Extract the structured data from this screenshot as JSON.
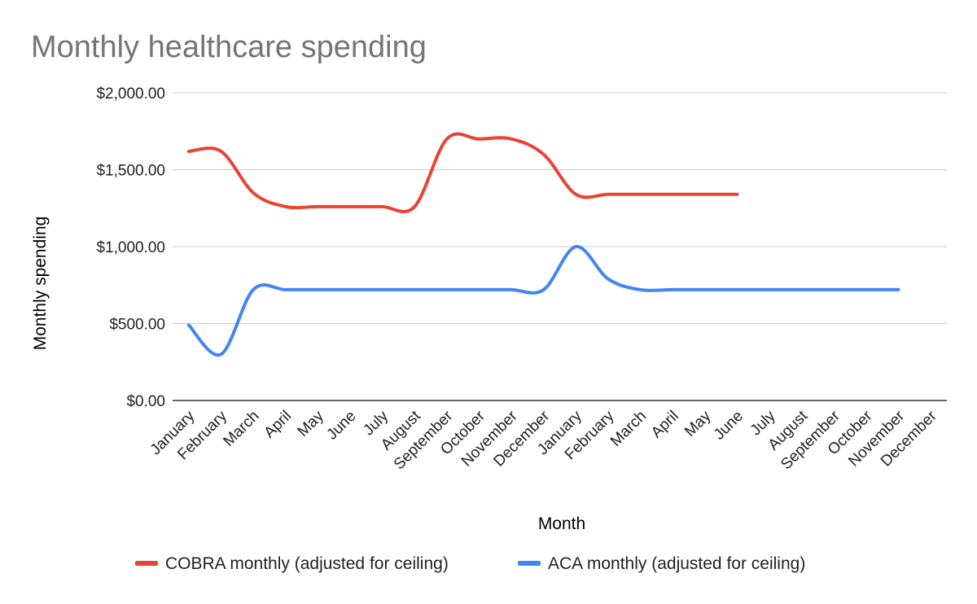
{
  "chart_data": {
    "type": "line",
    "title": "Monthly healthcare spending",
    "xlabel": "Month",
    "ylabel": "Monthly spending",
    "ylim": [
      0,
      2000
    ],
    "yticks": [
      "$0.00",
      "$500.00",
      "$1,000.00",
      "$1,500.00",
      "$2,000.00"
    ],
    "ytick_values": [
      0,
      500,
      1000,
      1500,
      2000
    ],
    "grid": true,
    "legend_position": "bottom",
    "categories": [
      "January",
      "February",
      "March",
      "April",
      "May",
      "June",
      "July",
      "August",
      "September",
      "October",
      "November",
      "December",
      "January",
      "February",
      "March",
      "April",
      "May",
      "June",
      "July",
      "August",
      "September",
      "October",
      "November",
      "December"
    ],
    "series": [
      {
        "name": "COBRA monthly (adjusted for ceiling)",
        "color": "#ea4335",
        "values": [
          1620,
          1620,
          1350,
          1260,
          1260,
          1260,
          1260,
          1260,
          1700,
          1700,
          1700,
          1600,
          1340,
          1340,
          1340,
          1340,
          1340,
          1340,
          null,
          null,
          null,
          null,
          null,
          null
        ]
      },
      {
        "name": "ACA monthly (adjusted for ceiling)",
        "color": "#4285f4",
        "values": [
          490,
          300,
          720,
          720,
          720,
          720,
          720,
          720,
          720,
          720,
          720,
          720,
          1000,
          790,
          720,
          720,
          720,
          720,
          720,
          720,
          720,
          720,
          720,
          null
        ]
      }
    ]
  }
}
